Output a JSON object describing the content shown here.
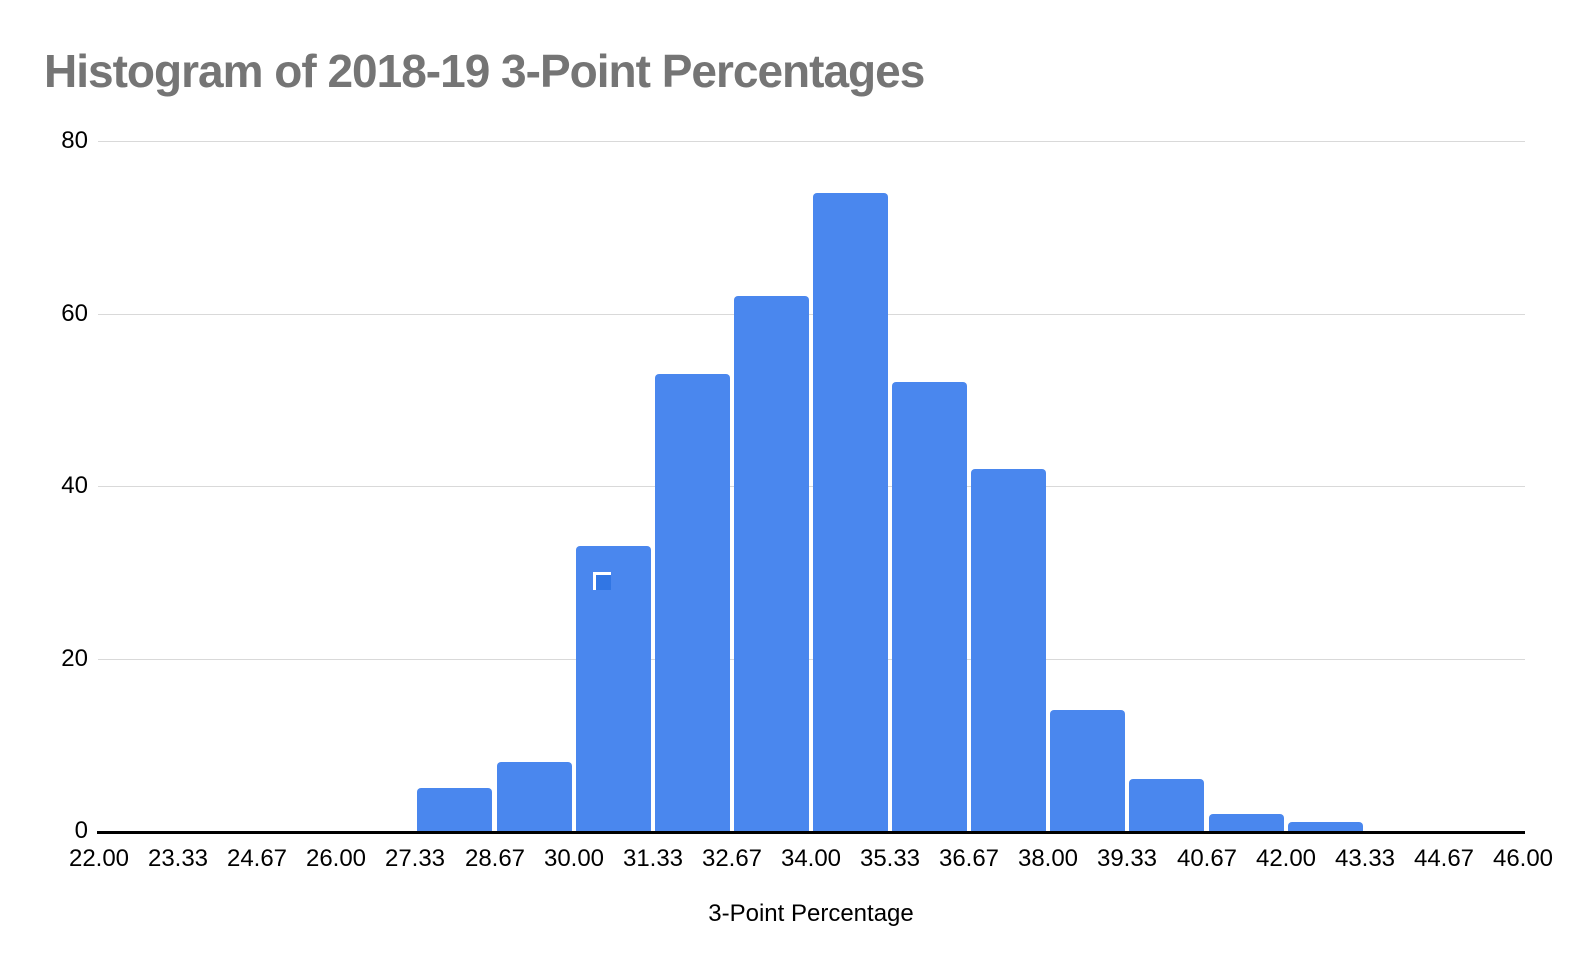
{
  "chart_data": {
    "type": "bar",
    "subtype": "histogram",
    "title": "Histogram of 2018-19 3-Point Percentages",
    "xlabel": "3-Point Percentage",
    "ylabel": "",
    "bin_width": 1.3333,
    "bins_start": [
      27.33,
      28.67,
      30.0,
      31.33,
      32.67,
      34.0,
      35.33,
      36.67,
      38.0,
      39.33,
      40.67,
      42.0
    ],
    "values": [
      5,
      8,
      33,
      53,
      62,
      74,
      52,
      42,
      14,
      6,
      2,
      1
    ],
    "x_tick_labels": [
      "22.00",
      "23.33",
      "24.67",
      "26.00",
      "27.33",
      "28.67",
      "30.00",
      "31.33",
      "32.67",
      "34.00",
      "35.33",
      "36.67",
      "38.00",
      "39.33",
      "40.67",
      "42.00",
      "43.33",
      "44.67",
      "46.00"
    ],
    "xlim": [
      22,
      46
    ],
    "y_ticks": [
      "0",
      "20",
      "40",
      "60",
      "80"
    ],
    "ylim": [
      0,
      80
    ],
    "grid": "horizontal",
    "legend": "none",
    "colors": {
      "bar": "#4a87ee",
      "title": "#757575",
      "gridline": "#d9d9d9",
      "axis_line": "#000000",
      "tick_label": "#000000",
      "selection_handle_fill": "#3176e4",
      "selection_handle_border": "#ffffff"
    }
  }
}
